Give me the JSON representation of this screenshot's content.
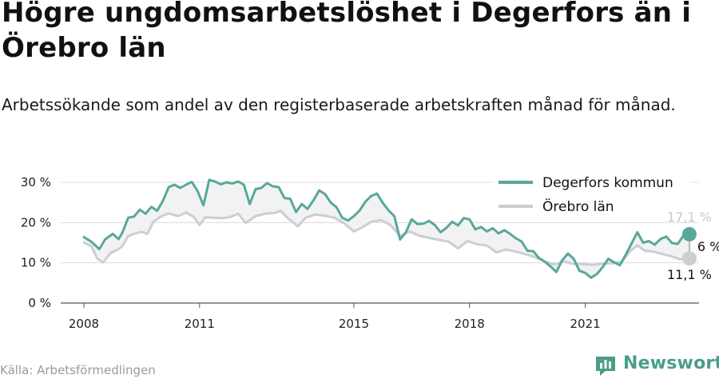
{
  "title": "Högre ungdomsarbetslöshet i Degerfors än i Örebro län",
  "subtitle": "Arbetssökande som andel av den registerbaserade arbetskraften månad för månad.",
  "source": "Källa: Arbetsförmedlingen",
  "brand": {
    "name": "Newsworthy",
    "icon": "newsworthy-logo-icon"
  },
  "colors": {
    "degerfors": "#58a89b",
    "orebro": "#cdcdd6",
    "band": "#f2f2f2",
    "grid": "#dcdcdc",
    "brand": "#4a9e8a"
  },
  "chart_data": {
    "type": "line",
    "title": "Högre ungdomsarbetslöshet i Degerfors än i Örebro län",
    "ylim": [
      0,
      30
    ],
    "y_ticks": [
      {
        "value": 0,
        "label": "0 %"
      },
      {
        "value": 10,
        "label": "10 %"
      },
      {
        "value": 20,
        "label": "20 %"
      },
      {
        "value": 30,
        "label": "30 %"
      }
    ],
    "x_ticks": [
      {
        "value": 2008,
        "label": "2008"
      },
      {
        "value": 2011,
        "label": "2011"
      },
      {
        "value": 2015,
        "label": "2015"
      },
      {
        "value": 2018,
        "label": "2018"
      },
      {
        "value": 2021,
        "label": "2021"
      }
    ],
    "xlim": [
      2007.4,
      2022.8
    ],
    "grid": true,
    "legend": "top-right",
    "gap_label": "6 %",
    "series": [
      {
        "name": "Degerfors kommun",
        "end_label": "17,1 %",
        "points": [
          [
            2008.0,
            16.4
          ],
          [
            2008.2,
            15.2
          ],
          [
            2008.4,
            13.4
          ],
          [
            2008.55,
            15.8
          ],
          [
            2008.75,
            17.2
          ],
          [
            2008.9,
            15.9
          ],
          [
            2009.0,
            17.5
          ],
          [
            2009.15,
            21.2
          ],
          [
            2009.3,
            21.5
          ],
          [
            2009.45,
            23.2
          ],
          [
            2009.6,
            22.2
          ],
          [
            2009.75,
            23.9
          ],
          [
            2009.9,
            22.9
          ],
          [
            2010.05,
            25.4
          ],
          [
            2010.2,
            28.8
          ],
          [
            2010.35,
            29.4
          ],
          [
            2010.5,
            28.6
          ],
          [
            2010.65,
            29.4
          ],
          [
            2010.8,
            30.1
          ],
          [
            2010.95,
            27.8
          ],
          [
            2011.1,
            24.3
          ],
          [
            2011.25,
            30.6
          ],
          [
            2011.4,
            30.2
          ],
          [
            2011.55,
            29.5
          ],
          [
            2011.7,
            30.0
          ],
          [
            2011.85,
            29.7
          ],
          [
            2012.0,
            30.2
          ],
          [
            2012.15,
            29.4
          ],
          [
            2012.3,
            24.6
          ],
          [
            2012.45,
            28.3
          ],
          [
            2012.6,
            28.6
          ],
          [
            2012.75,
            29.8
          ],
          [
            2012.9,
            29.0
          ],
          [
            2013.05,
            28.8
          ],
          [
            2013.2,
            26.1
          ],
          [
            2013.35,
            25.9
          ],
          [
            2013.5,
            22.6
          ],
          [
            2013.65,
            24.6
          ],
          [
            2013.8,
            23.4
          ],
          [
            2013.95,
            25.5
          ],
          [
            2014.1,
            28.0
          ],
          [
            2014.25,
            27.1
          ],
          [
            2014.4,
            25.0
          ],
          [
            2014.55,
            23.8
          ],
          [
            2014.7,
            21.2
          ],
          [
            2014.85,
            20.5
          ],
          [
            2015.0,
            21.6
          ],
          [
            2015.15,
            23.0
          ],
          [
            2015.3,
            25.2
          ],
          [
            2015.45,
            26.6
          ],
          [
            2015.6,
            27.2
          ],
          [
            2015.75,
            24.9
          ],
          [
            2015.9,
            23.0
          ],
          [
            2016.05,
            21.6
          ],
          [
            2016.2,
            15.8
          ],
          [
            2016.35,
            17.6
          ],
          [
            2016.5,
            20.8
          ],
          [
            2016.65,
            19.6
          ],
          [
            2016.8,
            19.7
          ],
          [
            2016.95,
            20.4
          ],
          [
            2017.1,
            19.4
          ],
          [
            2017.25,
            17.6
          ],
          [
            2017.4,
            18.7
          ],
          [
            2017.55,
            20.2
          ],
          [
            2017.7,
            19.3
          ],
          [
            2017.85,
            21.1
          ],
          [
            2018.0,
            20.8
          ],
          [
            2018.15,
            18.3
          ],
          [
            2018.3,
            18.9
          ],
          [
            2018.45,
            17.8
          ],
          [
            2018.6,
            18.6
          ],
          [
            2018.75,
            17.3
          ],
          [
            2018.9,
            18.1
          ],
          [
            2019.05,
            17.2
          ],
          [
            2019.2,
            16.1
          ],
          [
            2019.35,
            15.3
          ],
          [
            2019.5,
            13.0
          ],
          [
            2019.65,
            12.9
          ],
          [
            2019.8,
            11.2
          ],
          [
            2019.95,
            10.3
          ],
          [
            2020.1,
            9.1
          ],
          [
            2020.25,
            7.7
          ],
          [
            2020.4,
            10.6
          ],
          [
            2020.55,
            12.3
          ],
          [
            2020.7,
            11.0
          ],
          [
            2020.85,
            8.0
          ],
          [
            2021.0,
            7.5
          ],
          [
            2021.15,
            6.3
          ],
          [
            2021.3,
            7.2
          ],
          [
            2021.45,
            8.9
          ],
          [
            2021.6,
            11.0
          ],
          [
            2021.75,
            10.1
          ],
          [
            2021.9,
            9.4
          ],
          [
            2022.05,
            12.0
          ],
          [
            2022.2,
            14.8
          ],
          [
            2022.35,
            17.6
          ],
          [
            2022.5,
            15.0
          ],
          [
            2022.65,
            15.4
          ],
          [
            2022.8,
            14.5
          ],
          [
            2022.95,
            15.9
          ],
          [
            2023.1,
            16.5
          ],
          [
            2023.25,
            14.9
          ],
          [
            2023.4,
            14.7
          ],
          [
            2023.55,
            16.8
          ],
          [
            2023.7,
            17.1
          ]
        ]
      },
      {
        "name": "Örebro län",
        "end_label": "11,1 %",
        "points": [
          [
            2008.0,
            15.0
          ],
          [
            2008.2,
            14.1
          ],
          [
            2008.35,
            11.0
          ],
          [
            2008.5,
            10.1
          ],
          [
            2008.7,
            12.5
          ],
          [
            2008.9,
            13.4
          ],
          [
            2009.0,
            14.2
          ],
          [
            2009.15,
            16.6
          ],
          [
            2009.3,
            17.2
          ],
          [
            2009.5,
            17.7
          ],
          [
            2009.65,
            17.2
          ],
          [
            2009.8,
            20.2
          ],
          [
            2010.0,
            21.5
          ],
          [
            2010.2,
            22.3
          ],
          [
            2010.45,
            21.6
          ],
          [
            2010.65,
            22.5
          ],
          [
            2010.85,
            21.4
          ],
          [
            2011.0,
            19.4
          ],
          [
            2011.15,
            21.3
          ],
          [
            2011.35,
            21.2
          ],
          [
            2011.6,
            21.1
          ],
          [
            2011.8,
            21.4
          ],
          [
            2012.0,
            22.2
          ],
          [
            2012.2,
            19.9
          ],
          [
            2012.45,
            21.6
          ],
          [
            2012.7,
            22.2
          ],
          [
            2012.95,
            22.4
          ],
          [
            2013.1,
            22.9
          ],
          [
            2013.3,
            21.0
          ],
          [
            2013.55,
            19.1
          ],
          [
            2013.75,
            21.2
          ],
          [
            2014.0,
            22.0
          ],
          [
            2014.25,
            21.7
          ],
          [
            2014.5,
            21.2
          ],
          [
            2014.75,
            19.8
          ],
          [
            2015.0,
            17.8
          ],
          [
            2015.2,
            18.7
          ],
          [
            2015.45,
            20.2
          ],
          [
            2015.7,
            20.6
          ],
          [
            2015.95,
            19.4
          ],
          [
            2016.2,
            16.6
          ],
          [
            2016.45,
            17.8
          ],
          [
            2016.7,
            16.7
          ],
          [
            2016.95,
            16.2
          ],
          [
            2017.2,
            15.7
          ],
          [
            2017.45,
            15.3
          ],
          [
            2017.7,
            13.6
          ],
          [
            2017.95,
            15.4
          ],
          [
            2018.2,
            14.6
          ],
          [
            2018.45,
            14.3
          ],
          [
            2018.7,
            12.6
          ],
          [
            2018.95,
            13.3
          ],
          [
            2019.2,
            12.8
          ],
          [
            2019.45,
            12.1
          ],
          [
            2019.7,
            11.4
          ],
          [
            2019.95,
            10.3
          ],
          [
            2020.2,
            9.6
          ],
          [
            2020.45,
            10.3
          ],
          [
            2020.7,
            9.7
          ],
          [
            2020.95,
            9.7
          ],
          [
            2021.2,
            9.5
          ],
          [
            2021.45,
            9.8
          ],
          [
            2021.7,
            9.9
          ],
          [
            2021.95,
            10.3
          ],
          [
            2022.15,
            12.8
          ],
          [
            2022.35,
            14.3
          ],
          [
            2022.55,
            13.0
          ],
          [
            2022.75,
            12.8
          ],
          [
            2022.95,
            12.3
          ],
          [
            2023.2,
            11.7
          ],
          [
            2023.45,
            10.9
          ],
          [
            2023.7,
            11.1
          ]
        ]
      }
    ]
  }
}
